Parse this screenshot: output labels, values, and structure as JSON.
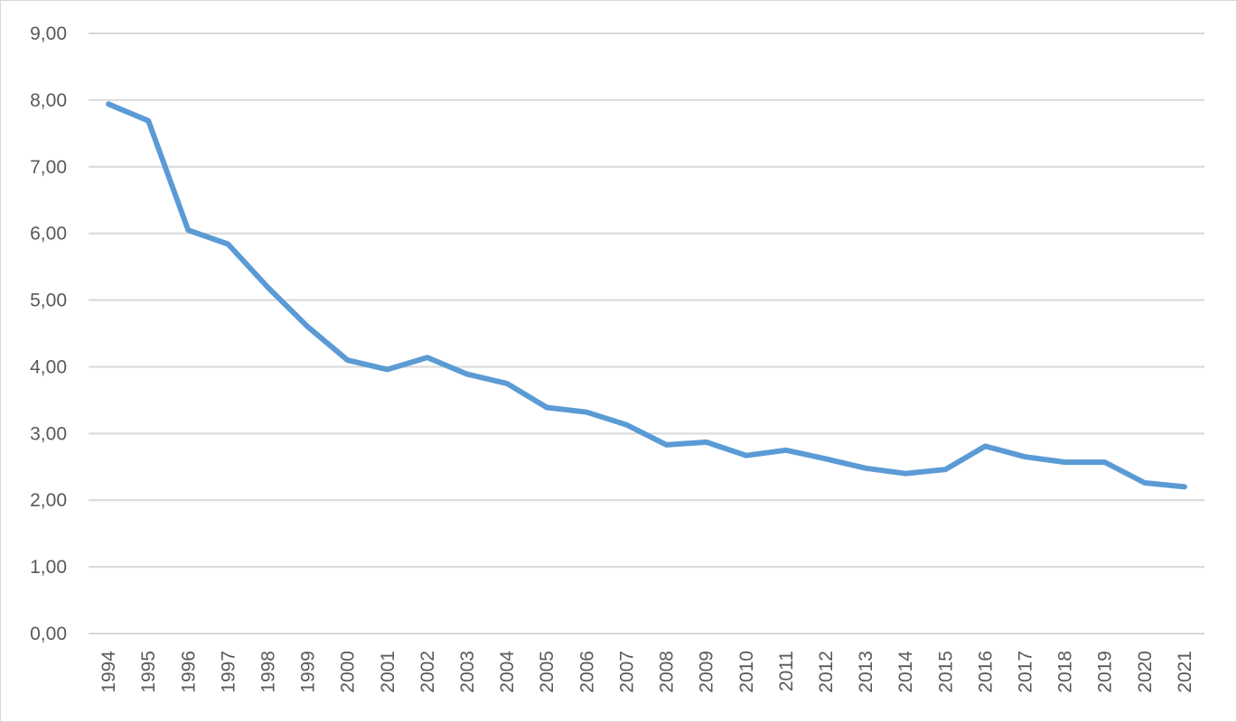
{
  "chart_data": {
    "type": "line",
    "title": "",
    "xlabel": "",
    "ylabel": "",
    "x": [
      "1994",
      "1995",
      "1996",
      "1997",
      "1998",
      "1999",
      "2000",
      "2001",
      "2002",
      "2003",
      "2004",
      "2005",
      "2006",
      "2007",
      "2008",
      "2009",
      "2010",
      "2011",
      "2012",
      "2013",
      "2014",
      "2015",
      "2016",
      "2017",
      "2018",
      "2019",
      "2020",
      "2021"
    ],
    "series": [
      {
        "color": "#5b9bd5",
        "values": [
          7.94,
          7.69,
          6.05,
          5.84,
          5.19,
          4.6,
          4.1,
          3.96,
          4.14,
          3.89,
          3.75,
          3.39,
          3.32,
          3.13,
          2.83,
          2.87,
          2.67,
          2.75,
          2.62,
          2.48,
          2.4,
          2.46,
          2.81,
          2.65,
          2.57,
          2.57,
          2.26,
          2.2
        ]
      }
    ],
    "ylim": [
      0,
      9
    ],
    "y_ticks": [
      "0,00",
      "1,00",
      "2,00",
      "3,00",
      "4,00",
      "5,00",
      "6,00",
      "7,00",
      "8,00",
      "9,00"
    ],
    "grid": true,
    "legend": "none",
    "gridline_color": "#d9d9d9"
  }
}
